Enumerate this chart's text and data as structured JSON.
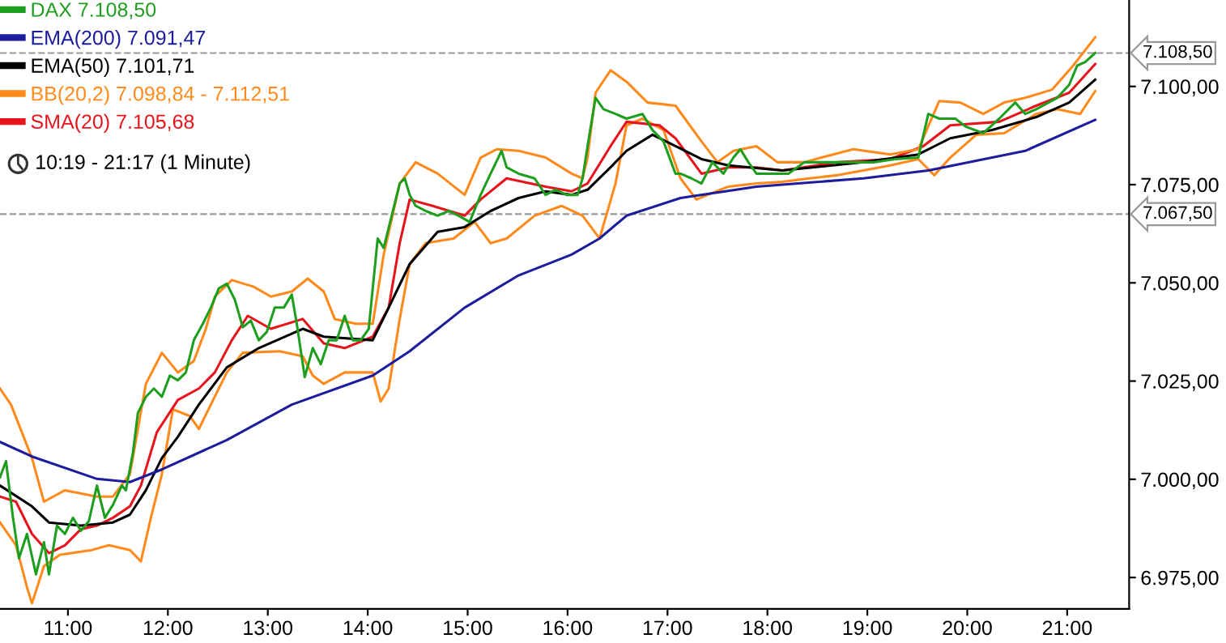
{
  "chart_data": {
    "type": "line",
    "xlim": [
      10.32,
      21.62
    ],
    "ylim": [
      6967,
      7122
    ],
    "xticks": [
      {
        "value": 11,
        "label": "11:00"
      },
      {
        "value": 12,
        "label": "12:00"
      },
      {
        "value": 13,
        "label": "13:00"
      },
      {
        "value": 14,
        "label": "14:00"
      },
      {
        "value": 15,
        "label": "15:00"
      },
      {
        "value": 16,
        "label": "16:00"
      },
      {
        "value": 17,
        "label": "17:00"
      },
      {
        "value": 18,
        "label": "18:00"
      },
      {
        "value": 19,
        "label": "19:00"
      },
      {
        "value": 20,
        "label": "20:00"
      },
      {
        "value": 21,
        "label": "21:00"
      }
    ],
    "yticks": [
      {
        "value": 6975,
        "label": "6.975,00"
      },
      {
        "value": 7000,
        "label": "7.000,00"
      },
      {
        "value": 7025,
        "label": "7.025,00"
      },
      {
        "value": 7050,
        "label": "7.050,00"
      },
      {
        "value": 7075,
        "label": "7.075,00"
      },
      {
        "value": 7100,
        "label": "7.100,00"
      }
    ],
    "legend": "top left",
    "grid": false,
    "annotations": [
      "10:19 - 21:17 (1 Minute)"
    ],
    "ref_lines": [
      {
        "axis": "y",
        "value": 7108.5,
        "label": "7.108,50",
        "color": "#999999",
        "line_style": "dashed"
      },
      {
        "axis": "y",
        "value": 7067.5,
        "label": "7.067,50",
        "color": "#999999",
        "line_style": "dashed"
      }
    ],
    "series": [
      {
        "name": "DAX 7.108,50",
        "color": "#1e9e1e",
        "x": [
          10.32,
          10.38,
          10.45,
          10.51,
          10.59,
          10.68,
          10.76,
          10.81,
          10.89,
          10.97,
          11.05,
          11.13,
          11.21,
          11.29,
          11.37,
          11.45,
          11.54,
          11.58,
          11.65,
          11.7,
          11.78,
          11.86,
          11.94,
          12.02,
          12.1,
          12.18,
          12.26,
          12.35,
          12.43,
          12.51,
          12.59,
          12.67,
          12.75,
          12.83,
          12.91,
          12.99,
          13.07,
          13.16,
          13.24,
          13.29,
          13.37,
          13.45,
          13.53,
          13.61,
          13.69,
          13.77,
          13.85,
          13.93,
          14.01,
          14.1,
          14.16,
          14.32,
          14.37,
          14.42,
          14.48,
          14.58,
          14.7,
          14.81,
          14.91,
          15.02,
          15.13,
          15.23,
          15.34,
          15.39,
          15.51,
          15.67,
          15.78,
          15.88,
          15.99,
          16.1,
          16.15,
          16.2,
          16.28,
          16.36,
          16.48,
          16.59,
          16.75,
          16.85,
          16.96,
          17.08,
          17.13,
          17.24,
          17.34,
          17.45,
          17.56,
          17.66,
          17.73,
          17.81,
          17.89,
          18.05,
          18.21,
          18.37,
          18.63,
          18.86,
          19.07,
          19.28,
          19.51,
          19.61,
          19.72,
          19.88,
          19.99,
          20.16,
          20.32,
          20.48,
          20.58,
          20.69,
          20.9,
          21.02,
          21.1,
          21.18,
          21.28
        ],
        "values": [
          7000.5,
          7004.6,
          6990.2,
          6979.9,
          6986.1,
          6975.8,
          6984.0,
          6975.8,
          6988.2,
          6986.1,
          6990.2,
          6986.9,
          6989.4,
          6998.4,
          6990.2,
          6993.5,
          6998.4,
          6997.2,
          7006.7,
          7016.9,
          7021.0,
          7023.1,
          7021.0,
          7026.4,
          7025.2,
          7027.2,
          7035.4,
          7039.6,
          7043.7,
          7048.6,
          7049.8,
          7045.7,
          7038.7,
          7040.4,
          7035.4,
          7037.5,
          7043.7,
          7043.7,
          7047.0,
          7039.6,
          7026.0,
          7033.4,
          7029.3,
          7035.4,
          7035.4,
          7041.6,
          7035.4,
          7035.4,
          7038.3,
          7061.3,
          7058.9,
          7075.3,
          7076.6,
          7072.4,
          7069.6,
          7068.3,
          7067.1,
          7068.3,
          7067.1,
          7065.5,
          7072.4,
          7077.8,
          7083.6,
          7079.4,
          7077.8,
          7076.6,
          7072.4,
          7073.7,
          7072.4,
          7072.4,
          7076.6,
          7084.8,
          7097.1,
          7094.2,
          7093.0,
          7091.8,
          7093.0,
          7088.9,
          7086.0,
          7077.8,
          7077.8,
          7076.6,
          7075.3,
          7080.7,
          7077.8,
          7081.9,
          7084.0,
          7080.7,
          7077.8,
          7077.8,
          7077.8,
          7080.7,
          7080.7,
          7080.7,
          7080.7,
          7081.5,
          7081.9,
          7093.0,
          7091.8,
          7091.8,
          7089.7,
          7088.1,
          7091.8,
          7095.9,
          7093.0,
          7094.2,
          7097.1,
          7100.4,
          7105.3,
          7106.2,
          7108.5
        ]
      },
      {
        "name": "EMA(200) 7.091,47",
        "color": "#1c1c9c",
        "x": [
          10.32,
          10.64,
          11.29,
          11.62,
          11.94,
          12.59,
          13.24,
          14.05,
          14.42,
          14.97,
          15.51,
          16.04,
          16.32,
          16.59,
          17.13,
          17.89,
          18.96,
          19.61,
          20.58,
          21.28
        ],
        "values": [
          7009.5,
          7005.8,
          7000.1,
          6999.3,
          7002.5,
          7010.0,
          7019.0,
          7026.4,
          7032.6,
          7043.7,
          7051.9,
          7057.2,
          7061.3,
          7067.1,
          7071.6,
          7074.5,
          7076.6,
          7078.6,
          7083.6,
          7091.5
        ]
      },
      {
        "name": "EMA(50) 7.101,71",
        "color": "#000000",
        "x": [
          10.32,
          10.64,
          10.81,
          11.13,
          11.45,
          11.62,
          11.78,
          11.94,
          12.1,
          12.31,
          12.59,
          12.91,
          13.35,
          13.56,
          14.05,
          14.21,
          14.42,
          14.7,
          14.97,
          15.23,
          15.51,
          15.78,
          16.04,
          16.2,
          16.43,
          16.59,
          16.85,
          17.08,
          17.34,
          17.61,
          18.15,
          18.96,
          19.51,
          19.83,
          20.25,
          20.69,
          21.02,
          21.28
        ],
        "values": [
          6998.4,
          6993.1,
          6989.0,
          6988.2,
          6989.0,
          6991.0,
          6997.2,
          7005.4,
          7010.8,
          7019.0,
          7028.5,
          7033.4,
          7038.3,
          7036.3,
          7035.4,
          7043.7,
          7054.8,
          7063.0,
          7064.2,
          7068.3,
          7071.6,
          7073.3,
          7072.4,
          7073.7,
          7079.4,
          7083.6,
          7087.7,
          7084.8,
          7081.5,
          7079.9,
          7078.6,
          7080.7,
          7082.7,
          7086.8,
          7088.9,
          7092.2,
          7095.9,
          7101.7
        ]
      },
      {
        "name": "BB(20,2) 7.098,84 - 7.112,51",
        "color": "#ff8a1c",
        "x": [
          10.32,
          10.43,
          10.64,
          10.76,
          10.97,
          11.29,
          11.45,
          11.62,
          11.78,
          11.94,
          12.1,
          12.26,
          12.38,
          12.47,
          12.64,
          12.86,
          13.03,
          13.24,
          13.4,
          13.56,
          13.67,
          13.88,
          14.05,
          14.16,
          14.32,
          14.48,
          14.7,
          14.97,
          15.13,
          15.29,
          15.51,
          15.78,
          16.04,
          16.15,
          16.2,
          16.28,
          16.43,
          16.59,
          16.8,
          17.08,
          17.34,
          17.5,
          17.66,
          17.89,
          18.1,
          18.37,
          18.54,
          18.86,
          19.23,
          19.51,
          19.72,
          19.93,
          20.16,
          20.37,
          20.58,
          20.85,
          21.06,
          21.28
        ],
        "values": [
          7023.1,
          7019.0,
          7005.4,
          6994.3,
          6997.2,
          6995.6,
          6995.6,
          7001.3,
          7024.3,
          7032.2,
          7027.2,
          7030.1,
          7038.3,
          7046.5,
          7050.7,
          7049.0,
          7046.5,
          7047.8,
          7051.1,
          7047.8,
          7040.8,
          7039.6,
          7039.6,
          7057.2,
          7075.3,
          7080.7,
          7077.8,
          7072.4,
          7081.9,
          7084.0,
          7083.6,
          7081.9,
          7077.8,
          7076.6,
          7081.9,
          7098.4,
          7104.1,
          7101.2,
          7095.9,
          7095.1,
          7086.0,
          7080.7,
          7083.6,
          7084.8,
          7080.7,
          7080.7,
          7081.9,
          7084.0,
          7082.7,
          7084.0,
          7096.3,
          7095.9,
          7093.0,
          7095.9,
          7097.1,
          7099.2,
          7105.3,
          7112.5
        ]
      },
      {
        "name": "SMA(20) 7.105,68",
        "color": "#e8141c",
        "x": [
          10.32,
          10.48,
          10.64,
          10.81,
          10.97,
          11.13,
          11.29,
          11.45,
          11.62,
          11.73,
          11.89,
          12.1,
          12.31,
          12.47,
          12.64,
          12.8,
          13.03,
          13.35,
          13.56,
          13.77,
          14.05,
          14.21,
          14.32,
          14.42,
          14.65,
          14.97,
          15.13,
          15.39,
          15.78,
          16.04,
          16.2,
          16.43,
          16.59,
          16.92,
          17.08,
          17.34,
          17.61,
          17.89,
          18.15,
          18.7,
          19.23,
          19.56,
          19.83,
          20.32,
          20.69,
          21.02,
          21.28
        ],
        "values": [
          6995.6,
          6994.3,
          6986.1,
          6981.2,
          6983.2,
          6987.3,
          6988.2,
          6990.2,
          6993.1,
          6998.4,
          7012.0,
          7020.2,
          7023.1,
          7027.2,
          7035.4,
          7041.6,
          7038.3,
          7040.8,
          7034.6,
          7033.4,
          7036.3,
          7043.7,
          7060.1,
          7071.2,
          7069.6,
          7067.1,
          7071.2,
          7076.6,
          7074.5,
          7073.3,
          7075.3,
          7084.8,
          7091.0,
          7090.1,
          7086.8,
          7077.8,
          7079.4,
          7079.4,
          7078.6,
          7080.7,
          7081.5,
          7084.8,
          7090.1,
          7091.0,
          7095.1,
          7098.4,
          7105.7
        ]
      },
      {
        "color": "#ff8a1c",
        "x": [
          10.32,
          10.48,
          10.59,
          10.64,
          10.76,
          10.92,
          11.24,
          11.41,
          11.62,
          11.73,
          11.83,
          11.94,
          12.05,
          12.22,
          12.31,
          12.43,
          12.59,
          12.75,
          13.12,
          13.35,
          13.45,
          13.56,
          13.77,
          14.05,
          14.13,
          14.21,
          14.32,
          14.42,
          14.58,
          14.86,
          15.07,
          15.23,
          15.39,
          15.67,
          15.94,
          16.15,
          16.32,
          16.48,
          16.59,
          16.75,
          16.96,
          17.13,
          17.29,
          17.4,
          17.61,
          17.89,
          18.15,
          18.42,
          18.7,
          18.96,
          19.23,
          19.51,
          19.67,
          19.83,
          20.09,
          20.37,
          20.69,
          20.9,
          21.13,
          21.28
        ],
        "values": [
          6989.0,
          6983.2,
          6972.5,
          6968.4,
          6977.9,
          6980.8,
          6982.0,
          6983.2,
          6982.0,
          6979.1,
          6990.2,
          7001.3,
          7017.8,
          7016.1,
          7012.8,
          7019.0,
          7027.2,
          7032.2,
          7032.6,
          7031.3,
          7026.4,
          7024.3,
          7027.2,
          7027.2,
          7019.8,
          7023.1,
          7040.8,
          7054.8,
          7060.1,
          7061.3,
          7065.5,
          7060.1,
          7061.3,
          7067.1,
          7069.6,
          7067.1,
          7061.3,
          7075.3,
          7090.1,
          7091.8,
          7088.9,
          7076.6,
          7071.2,
          7072.4,
          7074.5,
          7075.3,
          7075.7,
          7076.6,
          7077.4,
          7078.6,
          7079.9,
          7081.5,
          7077.4,
          7081.9,
          7087.7,
          7088.1,
          7093.0,
          7094.2,
          7093.0,
          7098.8
        ]
      }
    ]
  }
}
